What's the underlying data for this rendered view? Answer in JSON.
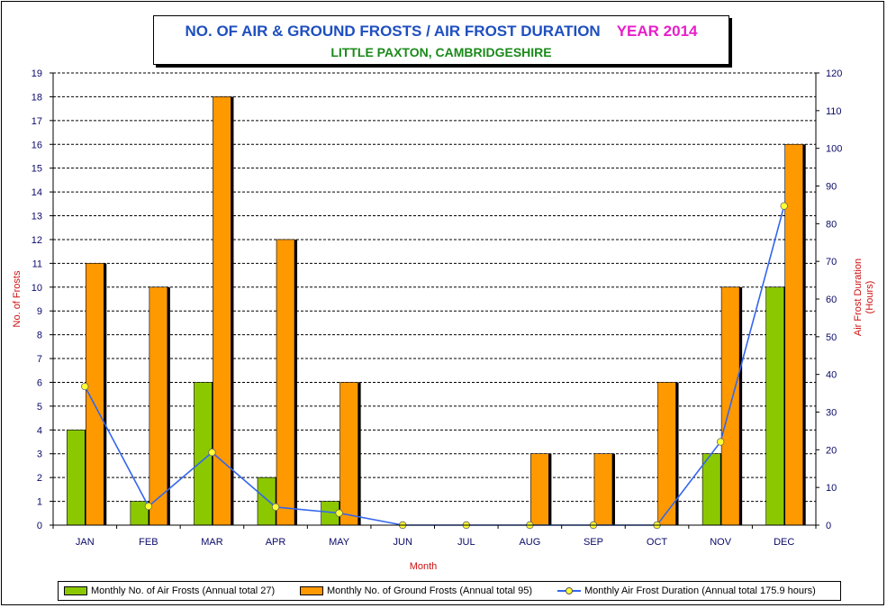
{
  "title": {
    "main": "NO. OF AIR & GROUND FROSTS / AIR FROST DURATION",
    "year": "YEAR 2014",
    "subtitle": "LITTLE PAXTON, CAMBRIDGESHIRE"
  },
  "colors": {
    "air_frost_bar": "#8cc800",
    "ground_frost_bar": "#ff9900",
    "duration_line": "#3366ee",
    "duration_marker": "#ffff33",
    "axis_title": "#cc1010",
    "tick_text": "#0a0a6a"
  },
  "chart_data": {
    "type": "bar",
    "categories": [
      "JAN",
      "FEB",
      "MAR",
      "APR",
      "MAY",
      "JUN",
      "JUL",
      "AUG",
      "SEP",
      "OCT",
      "NOV",
      "DEC"
    ],
    "series": [
      {
        "name": "Monthly No. of Air Frosts (Annual total 27)",
        "type": "bar",
        "axis": "left",
        "values": [
          4,
          1,
          6,
          2,
          1,
          0,
          0,
          0,
          0,
          0,
          3,
          10
        ]
      },
      {
        "name": "Monthly No. of Ground Frosts (Annual total 95)",
        "type": "bar",
        "axis": "left",
        "values": [
          11,
          10,
          18,
          12,
          6,
          0,
          0,
          3,
          3,
          6,
          10,
          16
        ]
      },
      {
        "name": "Monthly Air Frost Duration (Annual total 175.9 hours)",
        "type": "line",
        "axis": "right",
        "values": [
          36.8,
          5.0,
          19.3,
          4.8,
          3.2,
          0,
          0,
          0,
          0,
          0,
          22.1,
          84.7
        ]
      }
    ],
    "xlabel": "Month",
    "ylabel": "No. of Frosts",
    "y2label": [
      "Air Frost Duration",
      "(Hours)"
    ],
    "ylim": [
      0,
      19
    ],
    "y2lim": [
      0,
      120
    ],
    "yticks": [
      "0",
      "1",
      "2",
      "3",
      "4",
      "5",
      "6",
      "7",
      "8",
      "9",
      "10",
      "11",
      "12",
      "13",
      "14",
      "15",
      "16",
      "17",
      "18",
      "19"
    ],
    "y2ticks": [
      "0",
      "10",
      "20",
      "30",
      "40",
      "50",
      "60",
      "70",
      "80",
      "90",
      "100",
      "110",
      "120"
    ],
    "grid": true,
    "legend_position": "bottom"
  }
}
